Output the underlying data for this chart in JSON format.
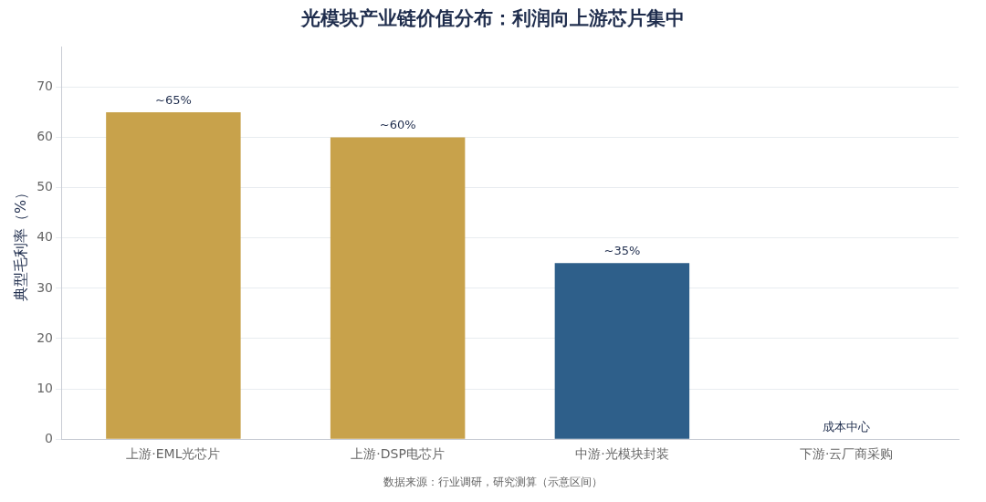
{
  "chart_data": {
    "type": "bar",
    "title": "光模块产业链价值分布：利润向上游芯片集中",
    "ylabel": "典型毛利率（%）",
    "categories": [
      "上游·EML光芯片",
      "上游·DSP电芯片",
      "中游·光模块封装",
      "下游·云厂商采购"
    ],
    "values": [
      65,
      60,
      35,
      0
    ],
    "colors": [
      "#c8a24b",
      "#c8a24b",
      "#2e5f8a",
      "#2e5f8a"
    ],
    "value_labels": [
      "~65%",
      "~60%",
      "~35%",
      "成本中心"
    ],
    "ylim": [
      0,
      78
    ],
    "yticks": [
      0,
      10,
      20,
      30,
      40,
      50,
      60,
      70
    ],
    "grid": "y",
    "legend": false,
    "annotations": [
      "数据来源：行业调研，研究测算（示意区间）"
    ]
  }
}
